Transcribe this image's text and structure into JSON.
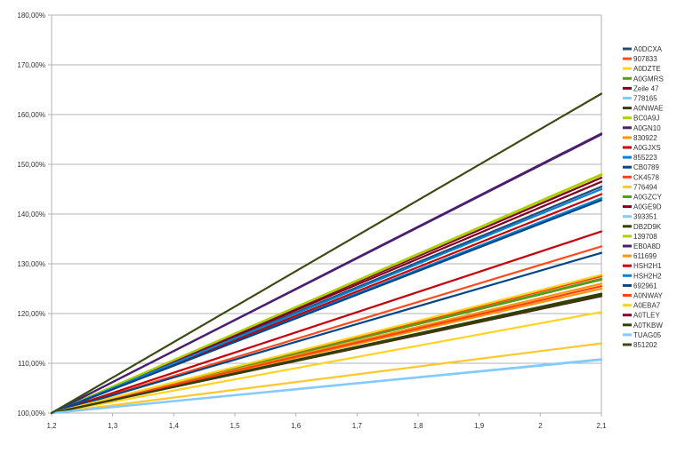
{
  "chart_data": {
    "type": "line",
    "title": "",
    "xlabel": "",
    "ylabel": "",
    "xlim": [
      1.2,
      2.1
    ],
    "ylim": [
      100,
      180
    ],
    "x_ticks": [
      1.2,
      1.3,
      1.4,
      1.5,
      1.6,
      1.7,
      1.8,
      1.9,
      2.0,
      2.1
    ],
    "x_tick_labels": [
      "1,2",
      "1,3",
      "1,4",
      "1,5",
      "1,6",
      "1,7",
      "1,8",
      "1,9",
      "2",
      "2,1"
    ],
    "y_ticks": [
      100,
      110,
      120,
      130,
      140,
      150,
      160,
      170,
      180
    ],
    "y_tick_labels": [
      "100,00%",
      "110,00%",
      "120,00%",
      "130,00%",
      "140,00%",
      "150,00%",
      "160,00%",
      "170,00%",
      "180,00%"
    ],
    "grid": "horizontal",
    "legend_position": "right",
    "x": [
      1.2,
      2.1
    ],
    "series": [
      {
        "name": "A0DCXA",
        "color": "#1f4e79",
        "values": [
          100,
          145.5
        ]
      },
      {
        "name": "907833",
        "color": "#ff4a1c",
        "values": [
          100,
          133.5
        ]
      },
      {
        "name": "A0DZTE",
        "color": "#ffd320",
        "values": [
          100,
          120.3
        ]
      },
      {
        "name": "A0GMRS",
        "color": "#579d1c",
        "values": [
          100,
          127
        ]
      },
      {
        "name": "Zeile 47",
        "color": "#7e0021",
        "values": [
          100,
          146.5
        ]
      },
      {
        "name": "778165",
        "color": "#83caff",
        "values": [
          100,
          110.8
        ]
      },
      {
        "name": "A0NWAE",
        "color": "#314004",
        "values": [
          100,
          123.8
        ]
      },
      {
        "name": "BC0A9J",
        "color": "#aecf00",
        "values": [
          100,
          148
        ]
      },
      {
        "name": "A0GN10",
        "color": "#4b1f6f",
        "values": [
          100,
          156.2
        ]
      },
      {
        "name": "830922",
        "color": "#ff950e",
        "values": [
          100,
          125
        ]
      },
      {
        "name": "A0GJXS",
        "color": "#c5000b",
        "values": [
          100,
          136.5
        ]
      },
      {
        "name": "855223",
        "color": "#0084d1",
        "values": [
          100,
          143.2
        ]
      },
      {
        "name": "CB0789",
        "color": "#004586",
        "values": [
          100,
          132.2
        ]
      },
      {
        "name": "CK4578",
        "color": "#ff420e",
        "values": [
          100,
          127.5
        ]
      },
      {
        "name": "776494",
        "color": "#ffc72c",
        "values": [
          100,
          114
        ]
      },
      {
        "name": "A0GZCY",
        "color": "#579d1c",
        "values": [
          100,
          126.8
        ]
      },
      {
        "name": "A0GE9D",
        "color": "#7e0021",
        "values": [
          100,
          147.3
        ]
      },
      {
        "name": "393351",
        "color": "#83caff",
        "values": [
          100,
          110.8
        ]
      },
      {
        "name": "DB2D9K",
        "color": "#314004",
        "values": [
          100,
          124
        ]
      },
      {
        "name": "139708",
        "color": "#aecf00",
        "values": [
          100,
          147.8
        ]
      },
      {
        "name": "EB0A8D",
        "color": "#4b1f6f",
        "values": [
          100,
          156
        ]
      },
      {
        "name": "611699",
        "color": "#ff950e",
        "values": [
          100,
          126
        ]
      },
      {
        "name": "HSH2H1",
        "color": "#c5000b",
        "values": [
          100,
          144
        ]
      },
      {
        "name": "HSH2H2",
        "color": "#0084d1",
        "values": [
          100,
          145
        ]
      },
      {
        "name": "692961",
        "color": "#004586",
        "values": [
          100,
          142.8
        ]
      },
      {
        "name": "A0NWAY",
        "color": "#ff420e",
        "values": [
          100,
          125.5
        ]
      },
      {
        "name": "A0EBA7",
        "color": "#ffd320",
        "values": [
          100,
          127.8
        ]
      },
      {
        "name": "A0TLEY",
        "color": "#7e0021",
        "values": [
          100,
          123.5
        ]
      },
      {
        "name": "A0TKBW",
        "color": "#314004",
        "values": [
          100,
          123.6
        ]
      },
      {
        "name": "TUAG05",
        "color": "#83caff",
        "values": [
          100,
          110.7
        ]
      },
      {
        "name": "851202",
        "color": "#3c4a15",
        "values": [
          100,
          164.2
        ]
      }
    ]
  }
}
